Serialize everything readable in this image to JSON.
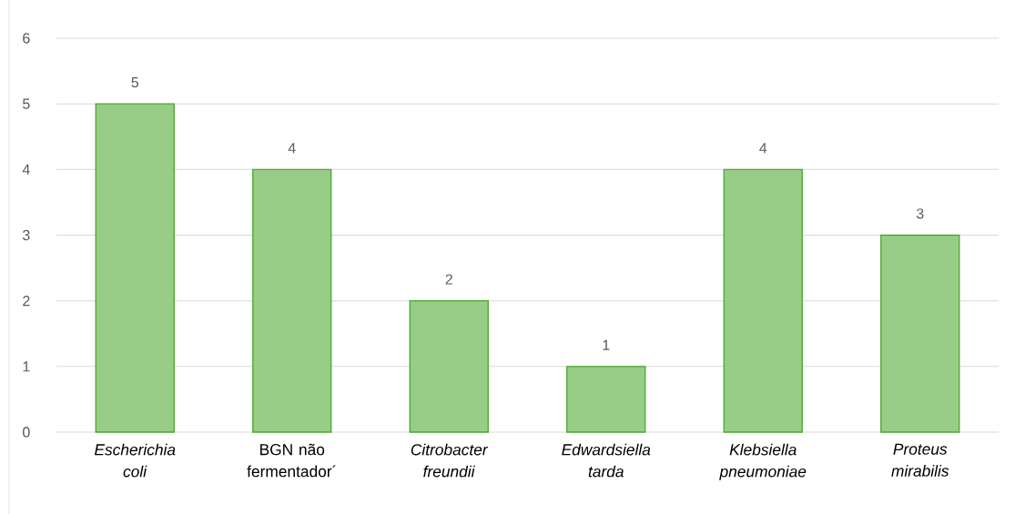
{
  "chart_data": {
    "type": "bar",
    "categories": [
      "*Escherichia coli*",
      "BGN não fermentador´",
      "*Citrobacter freundii*",
      "*Edwardsiella tarda*",
      "*Klebsiella pneumoniae*",
      "*Proteus mirabilis*"
    ],
    "values": [
      5,
      4,
      2,
      1,
      4,
      3
    ],
    "color": "#98cd88",
    "ylim": [
      0,
      6
    ],
    "yticks": [
      0,
      1,
      2,
      3,
      4,
      5,
      6
    ],
    "grid": "y",
    "data_labels": true
  }
}
